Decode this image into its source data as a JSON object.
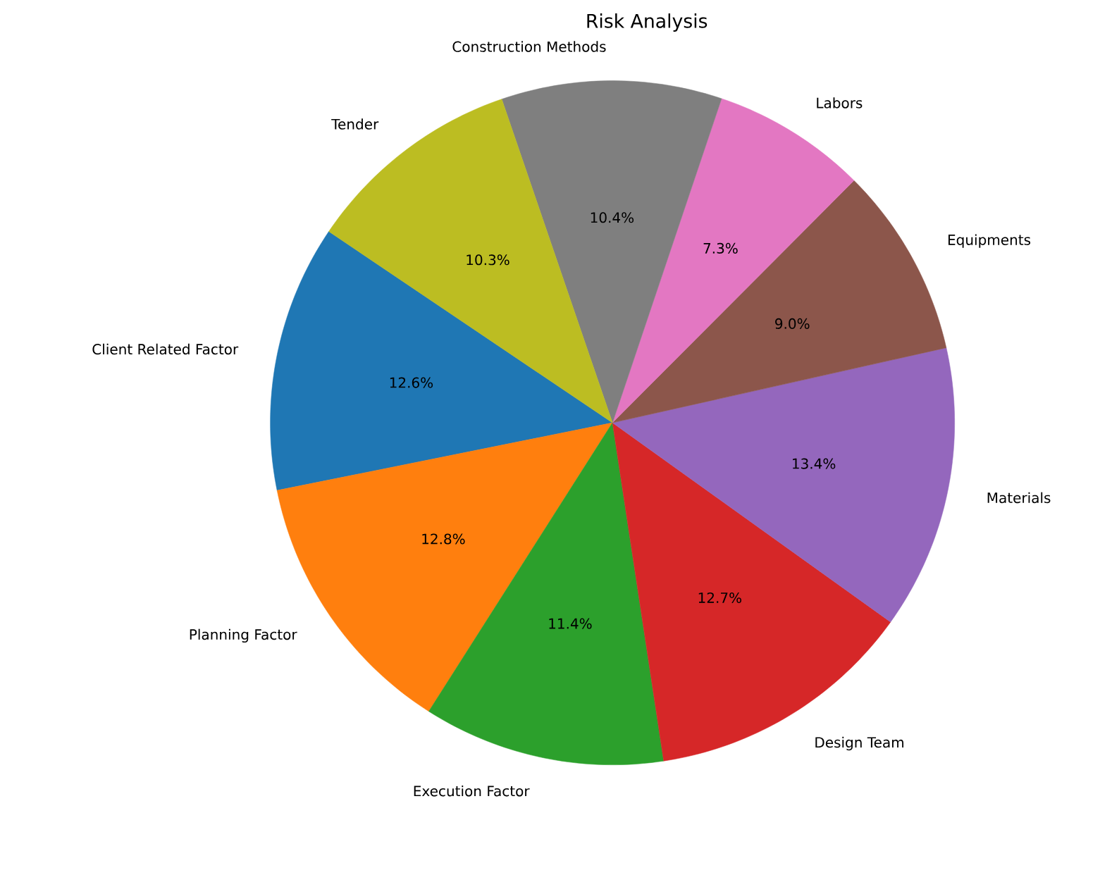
{
  "chart_data": {
    "type": "pie",
    "title": "Risk Analysis",
    "categories": [
      "Client Related Factor",
      "Planning Factor",
      "Execution Factor",
      "Design Team",
      "Materials",
      "Equipments",
      "Labors",
      "Construction Methods",
      "Tender"
    ],
    "values": [
      12.6,
      12.8,
      11.4,
      12.7,
      13.4,
      9.0,
      7.3,
      10.4,
      10.3
    ],
    "value_labels": [
      "12.6%",
      "12.8%",
      "11.4%",
      "12.7%",
      "13.4%",
      "9.0%",
      "7.3%",
      "10.4%",
      "10.3%"
    ],
    "colors": [
      "#1f77b4",
      "#ff7f0e",
      "#2ca02c",
      "#d62728",
      "#9467bd",
      "#8c564b",
      "#e377c2",
      "#7f7f7f",
      "#bcbd22"
    ]
  }
}
